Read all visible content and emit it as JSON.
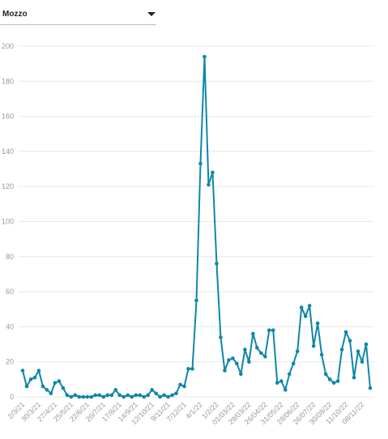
{
  "dropdown": {
    "label": "Mozzo"
  },
  "chart_data": {
    "type": "line",
    "categories": [
      "2/3/21",
      null,
      null,
      null,
      "30/3/21",
      null,
      null,
      null,
      "27/4/21",
      null,
      null,
      null,
      "25/5/21",
      null,
      null,
      null,
      "22/6/21",
      null,
      null,
      null,
      "20/7/21",
      null,
      null,
      null,
      "17/8/21",
      null,
      null,
      null,
      "14/9/21",
      null,
      null,
      null,
      "12/10/21",
      null,
      null,
      null,
      "9/11/21",
      null,
      null,
      null,
      "7/12/21",
      null,
      null,
      null,
      "4/1/22",
      null,
      null,
      null,
      "1/2/22",
      null,
      null,
      null,
      "01/03/22",
      null,
      null,
      null,
      "29/03/22",
      null,
      null,
      null,
      "26/04/22",
      null,
      null,
      null,
      "31/05/22",
      null,
      null,
      null,
      "28/06/22",
      null,
      null,
      null,
      "26/07/22",
      null,
      null,
      null,
      "30/08/22",
      null,
      null,
      null,
      "11/10/22",
      null,
      null,
      null,
      "08/11/22",
      null,
      null
    ],
    "series": [
      {
        "color": "#0e87a8",
        "values": [
          15,
          6,
          10,
          11,
          15,
          6,
          4,
          2,
          8,
          9,
          5,
          1,
          0,
          1,
          0,
          0,
          0,
          0,
          1,
          1,
          0,
          1,
          1,
          4,
          1,
          0,
          1,
          0,
          1,
          1,
          0,
          1,
          4,
          2,
          0,
          1,
          0,
          1,
          2,
          7,
          6,
          16,
          16,
          55,
          133,
          194,
          121,
          128,
          76,
          34,
          15,
          21,
          22,
          19,
          13,
          27,
          20,
          36,
          28,
          25,
          23,
          38,
          38,
          8,
          9,
          4,
          13,
          19,
          26,
          51,
          46,
          52,
          29,
          42,
          24,
          13,
          10,
          8,
          9,
          27,
          37,
          32,
          11,
          26,
          20,
          30,
          5
        ]
      }
    ],
    "ylim": [
      0,
      200
    ],
    "yticks": [
      0,
      20,
      40,
      60,
      80,
      100,
      120,
      140,
      160,
      180,
      200
    ],
    "grid": true
  }
}
